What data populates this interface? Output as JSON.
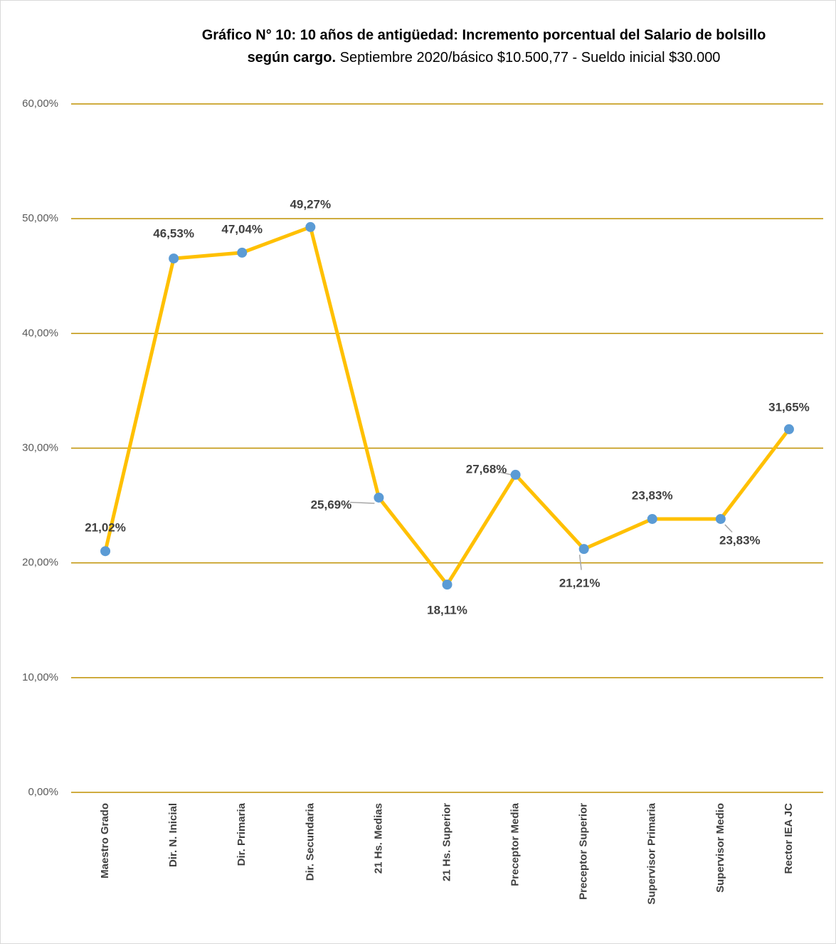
{
  "chart_data": {
    "type": "line",
    "title": [
      "Gráfico N° 10: 10 años de antigüedad: Incremento porcentual del Salario de bolsillo",
      "según cargo."
    ],
    "subtitle": "Septiembre 2020/básico $10.500,77 - Sueldo inicial $30.000",
    "categories": [
      "Maestro Grado",
      "Dir. N. Inicial",
      "Dir. Primaria",
      "Dir. Secundaria",
      "21 Hs. Medias",
      "21 Hs. Superior",
      "Preceptor Media",
      "Preceptor Superior",
      "Supervisor Primaria",
      "Supervisor Medio",
      "Rector IEA JC"
    ],
    "series": [
      {
        "name": "Incremento porcentual",
        "color": "#ffc000",
        "marker_color": "#5b9bd5",
        "values": [
          21.02,
          46.53,
          47.04,
          49.27,
          25.69,
          18.11,
          27.68,
          21.21,
          23.83,
          23.83,
          31.65
        ],
        "value_labels": [
          "21,02%",
          "46,53%",
          "47,04%",
          "49,27%",
          "25,69%",
          "18,11%",
          "27,68%",
          "21,21%",
          "23,83%",
          "23,83%",
          "31,65%"
        ]
      }
    ],
    "ylim": [
      0,
      60
    ],
    "yticks": [
      {
        "value": 0,
        "label": "0,00%"
      },
      {
        "value": 10,
        "label": "10,00%"
      },
      {
        "value": 20,
        "label": "20,00%"
      },
      {
        "value": 30,
        "label": "30,00%"
      },
      {
        "value": 40,
        "label": "40,00%"
      },
      {
        "value": 50,
        "label": "50,00%"
      },
      {
        "value": 60,
        "label": "60,00%"
      }
    ],
    "grid": true,
    "grid_color": "#bf9000"
  }
}
